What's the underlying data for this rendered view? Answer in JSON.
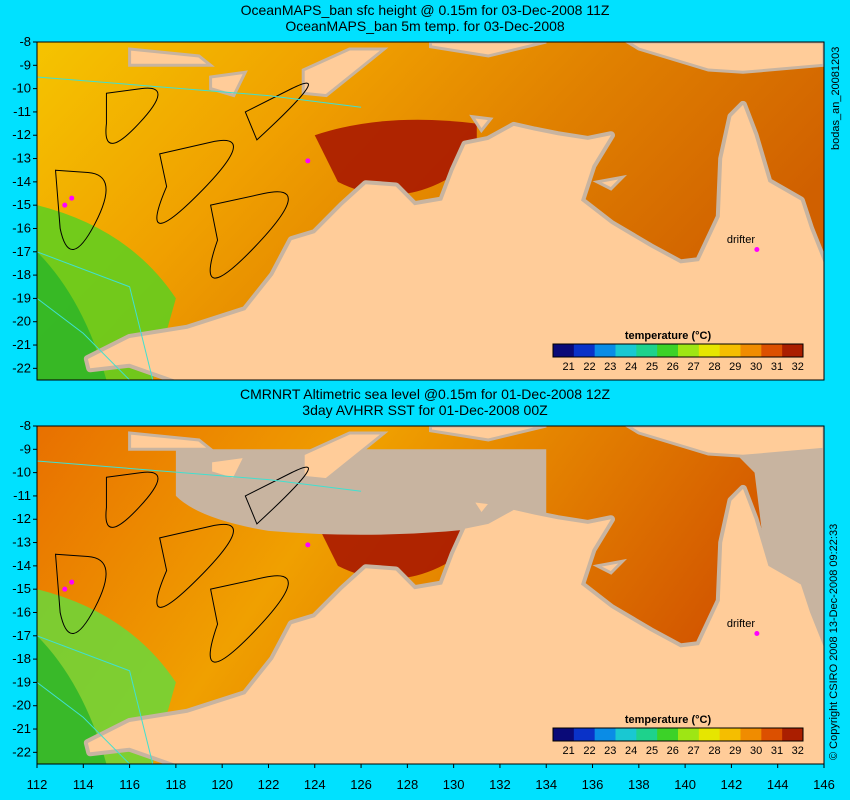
{
  "top_panel": {
    "title_line1": "OceanMAPS_ban sfc height @ 0.15m for 03-Dec-2008 11Z",
    "title_line2": "OceanMAPS_ban 5m temp. for 03-Dec-2008",
    "side_label": "bodas_an_20081203",
    "colorbar_title": "temperature (°C)",
    "drifter_label": "drifter"
  },
  "bottom_panel": {
    "title_line1": "CMRNRT Altimetric sea level  @0.15m  for 01-Dec-2008 12Z",
    "title_line2": "3day AVHRR SST for 01-Dec-2008 00Z",
    "side_label": "© Copyright CSIRO 2008  13-Dec-2008 09:22:33",
    "colorbar_title": "temperature (°C)",
    "drifter_label": "drifter"
  },
  "axes": {
    "lat_ticks": [
      -8,
      -9,
      -10,
      -11,
      -12,
      -13,
      -14,
      -15,
      -16,
      -17,
      -18,
      -19,
      -20,
      -21,
      -22
    ],
    "lon_ticks": [
      112,
      114,
      116,
      118,
      120,
      122,
      124,
      126,
      128,
      130,
      132,
      134,
      136,
      138,
      140,
      142,
      144,
      146
    ],
    "lon_range": [
      112,
      146
    ],
    "lat_range": [
      -22.5,
      -8
    ]
  },
  "colorbar": {
    "ticks": [
      21,
      22,
      23,
      24,
      25,
      26,
      27,
      28,
      29,
      30,
      31,
      32
    ],
    "colors": [
      "#0a0a78",
      "#0a32c8",
      "#0a8ce6",
      "#19c8d2",
      "#1ed28c",
      "#3cd228",
      "#9ee614",
      "#e6e600",
      "#f5be00",
      "#f08c00",
      "#dc5000",
      "#aa1e00"
    ]
  },
  "colors": {
    "background": "#00e1ff",
    "land": "#ffcc99",
    "coastline_shelf": "#c8b4a0",
    "contour": "#40e0d0",
    "drifter": "#ff00ff"
  }
}
